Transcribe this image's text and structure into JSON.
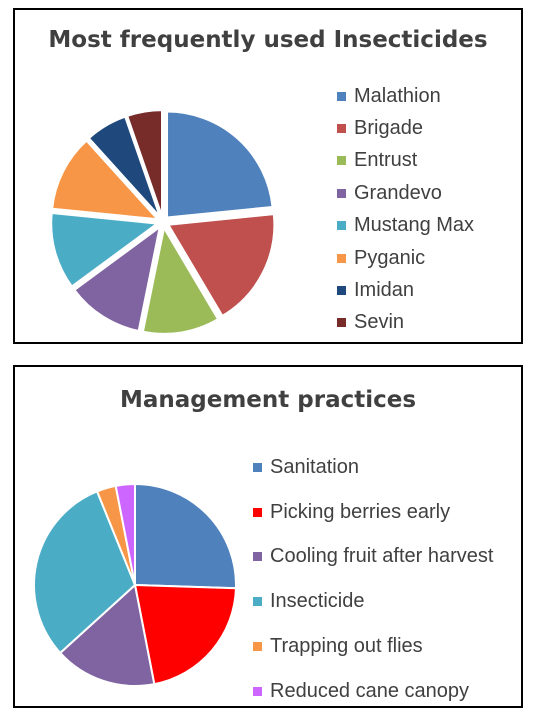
{
  "chart_data": [
    {
      "type": "pie",
      "title": "Most frequently used Insecticides",
      "legend_position": "right",
      "slices": [
        {
          "label": "Malathion",
          "value": 22,
          "color": "#4F81BD"
        },
        {
          "label": "Brigade",
          "value": 17,
          "color": "#C0504D"
        },
        {
          "label": "Entrust",
          "value": 11,
          "color": "#9BBB59"
        },
        {
          "label": "Grandevo",
          "value": 11,
          "color": "#8064A2"
        },
        {
          "label": "Mustang Max",
          "value": 11,
          "color": "#4BACC6"
        },
        {
          "label": "Pyganic",
          "value": 11,
          "color": "#F79646"
        },
        {
          "label": "Imidan",
          "value": 6,
          "color": "#1F497D"
        },
        {
          "label": "Sevin",
          "value": 5,
          "color": "#772C2A"
        }
      ],
      "exploded": true
    },
    {
      "type": "pie",
      "title": "Management practices",
      "legend_position": "right",
      "slices": [
        {
          "label": "Sanitation",
          "value": 25,
          "color": "#4F81BD"
        },
        {
          "label": "Picking berries early",
          "value": 21,
          "color": "#FF0000"
        },
        {
          "label": "Cooling fruit after harvest",
          "value": 16,
          "color": "#8064A2"
        },
        {
          "label": "Insecticide",
          "value": 30,
          "color": "#4BACC6"
        },
        {
          "label": "Trapping out flies",
          "value": 3,
          "color": "#F79646"
        },
        {
          "label": "Reduced cane canopy",
          "value": 3,
          "color": "#CC66FF"
        }
      ],
      "exploded": false
    }
  ]
}
